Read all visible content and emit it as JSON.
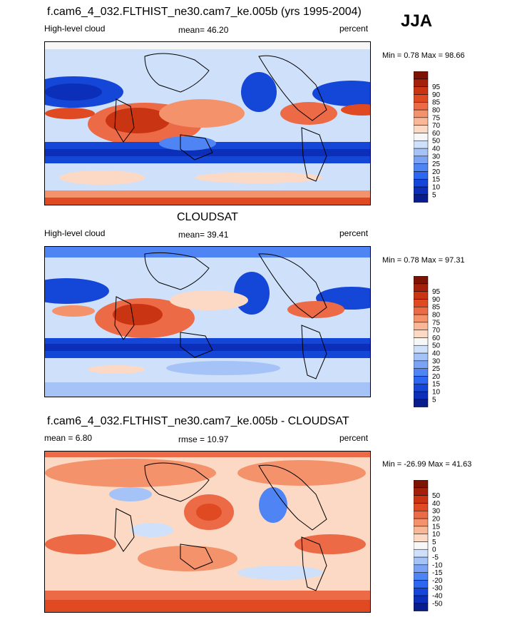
{
  "season": "JJA",
  "palette_abs": [
    "#0a1d8c",
    "#0b2fb8",
    "#1446d8",
    "#2d66f0",
    "#4f84f4",
    "#7aa3f5",
    "#a6c3f7",
    "#cfe0fa",
    "#f7f7f7",
    "#fbd9c4",
    "#f8b796",
    "#f3926b",
    "#ec6a45",
    "#e04a23",
    "#c93512",
    "#a5200a",
    "#7c1304"
  ],
  "palette_diff": [
    "#0a1d8c",
    "#0b2fb8",
    "#1446d8",
    "#2d66f0",
    "#4f84f4",
    "#7aa3f5",
    "#a6c3f7",
    "#cfe0fa",
    "#f7f7f7",
    "#fbd9c4",
    "#f8b796",
    "#f3926b",
    "#ec6a45",
    "#e04a23",
    "#c93512",
    "#a5200a",
    "#7c1304"
  ],
  "panels": [
    {
      "title": "f.cam6_4_032.FLTHIST_ne30.cam7_ke.005b (yrs 1995-2004)",
      "left_label": "High-level cloud",
      "center_label": "mean=  46.20",
      "right_label": "percent",
      "minmax": "Min =   0.78 Max =  98.66",
      "colorbar_ticks": [
        "5",
        "10",
        "15",
        "20",
        "25",
        "30",
        "40",
        "50",
        "60",
        "70",
        "75",
        "80",
        "85",
        "90",
        "95"
      ]
    },
    {
      "title": "CLOUDSAT",
      "left_label": "High-level cloud",
      "center_label": "mean=  39.41",
      "right_label": "percent",
      "minmax": "Min =   0.78 Max =  97.31",
      "colorbar_ticks": [
        "5",
        "10",
        "15",
        "20",
        "25",
        "30",
        "40",
        "50",
        "60",
        "70",
        "75",
        "80",
        "85",
        "90",
        "95"
      ]
    },
    {
      "title": "f.cam6_4_032.FLTHIST_ne30.cam7_ke.005b - CLOUDSAT",
      "left_label": "mean =   6.80",
      "center_label": "rmse =  10.97",
      "right_label": "percent",
      "minmax": "Min = -26.99 Max =  41.63",
      "colorbar_ticks": [
        "-50",
        "-40",
        "-30",
        "-20",
        "-15",
        "-10",
        "-5",
        "0",
        "5",
        "10",
        "15",
        "20",
        "30",
        "40",
        "50"
      ]
    }
  ]
}
